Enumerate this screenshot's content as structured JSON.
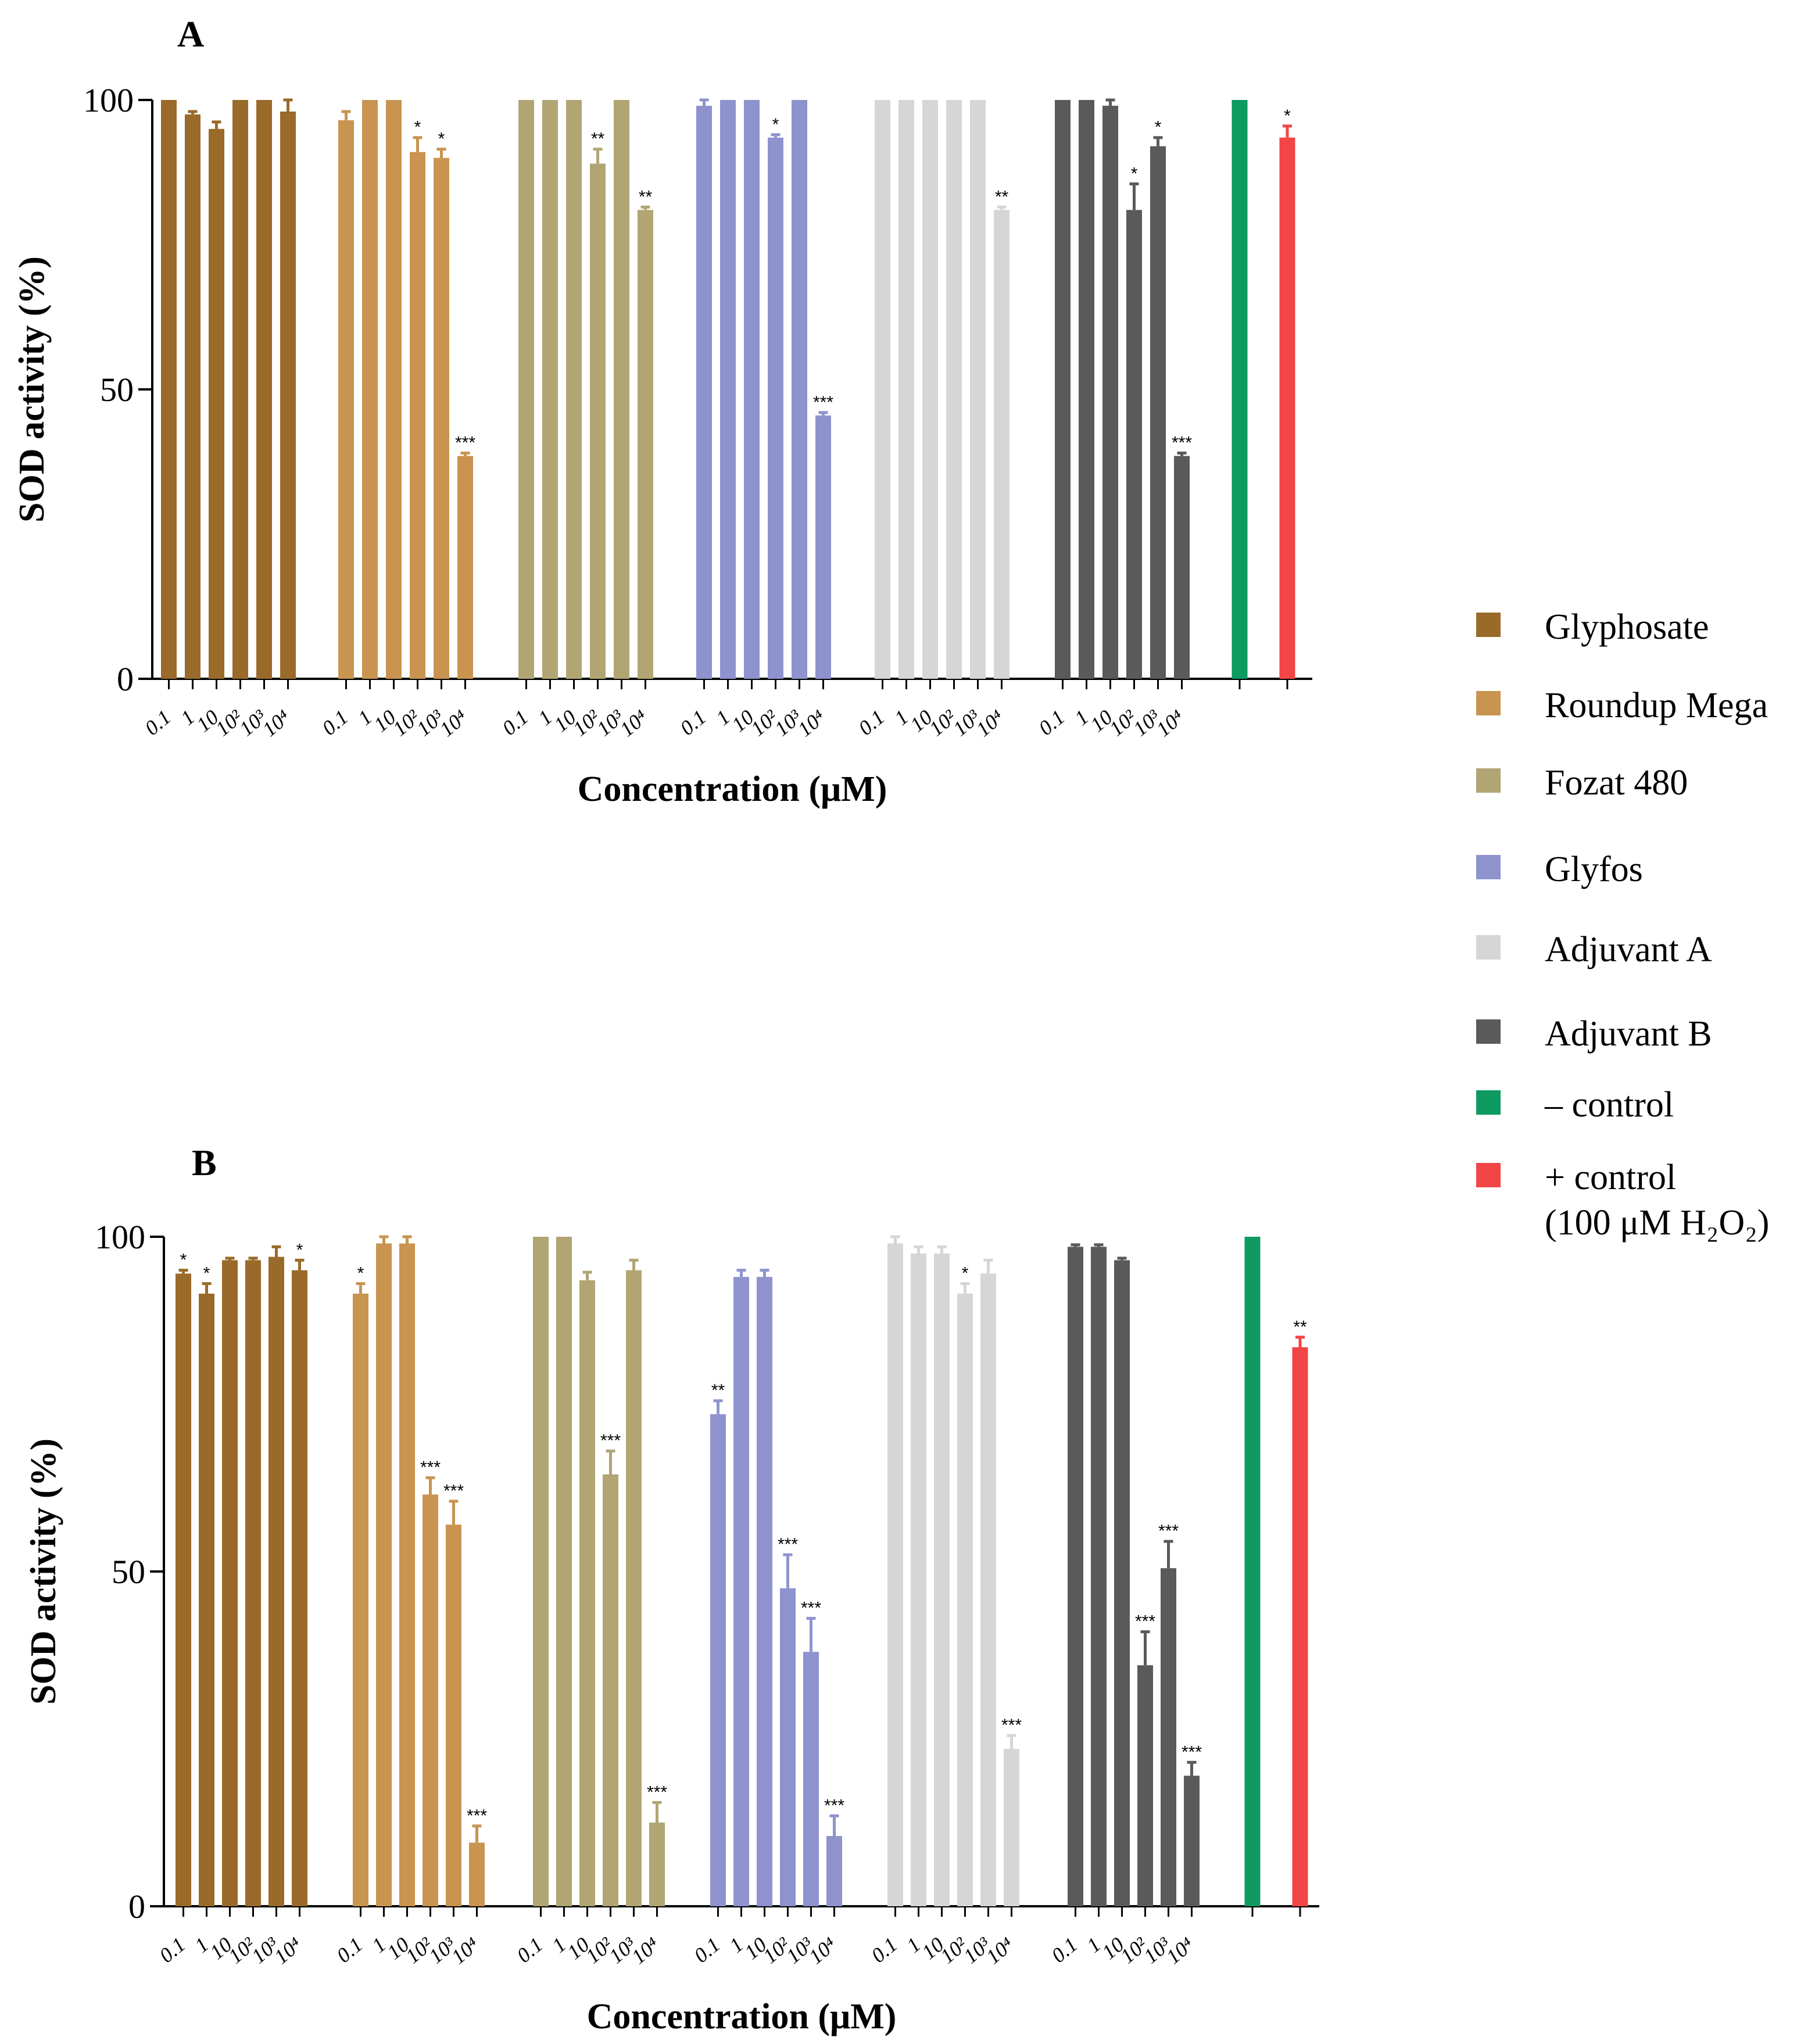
{
  "chart_data": [
    {
      "panel_label": "A",
      "type": "bar",
      "xlabel": "Concentration (μM)",
      "ylabel": "SOD activity (%)",
      "ylim": [
        0,
        100
      ],
      "yticks": [
        "0",
        "50",
        "100"
      ],
      "concentration_ticks": [
        "0.1",
        "1",
        "10",
        "10²",
        "10³",
        "10⁴"
      ],
      "groups": [
        {
          "name": "Glyphosate",
          "values": [
            100,
            97.5,
            95,
            100,
            100,
            98
          ],
          "errors": [
            0,
            0.5,
            1.2,
            0,
            0,
            2
          ],
          "sig": [
            "",
            "",
            "",
            "",
            "",
            ""
          ]
        },
        {
          "name": "Roundup Mega",
          "values": [
            96.5,
            100,
            100,
            91,
            90,
            38.5
          ],
          "errors": [
            1.5,
            0,
            0,
            2.5,
            1.5,
            0.5
          ],
          "sig": [
            "",
            "",
            "",
            "*",
            "*",
            "***"
          ]
        },
        {
          "name": "Fozat 480",
          "values": [
            100,
            100,
            100,
            89,
            100,
            81
          ],
          "errors": [
            0,
            0,
            0,
            2.5,
            0,
            0.5
          ],
          "sig": [
            "",
            "",
            "",
            "**",
            "",
            "**"
          ]
        },
        {
          "name": "Glyfos",
          "values": [
            99,
            100,
            100,
            93.5,
            100,
            45.5
          ],
          "errors": [
            1,
            0,
            0,
            0.5,
            0,
            0.5
          ],
          "sig": [
            "",
            "",
            "",
            "*",
            "",
            "***"
          ]
        },
        {
          "name": "Adjuvant A",
          "values": [
            100,
            100,
            100,
            100,
            100,
            81
          ],
          "errors": [
            0,
            0,
            0,
            0,
            0,
            0.5
          ],
          "sig": [
            "",
            "",
            "",
            "",
            "",
            "**"
          ]
        },
        {
          "name": "Adjuvant B",
          "values": [
            100,
            100,
            99,
            81,
            92,
            38.5
          ],
          "errors": [
            0,
            0,
            1,
            4.5,
            1.5,
            0.5
          ],
          "sig": [
            "",
            "",
            "",
            "*",
            "*",
            "***"
          ]
        }
      ],
      "controls": [
        {
          "name": "– control",
          "value": 100,
          "error": 0,
          "sig": ""
        },
        {
          "name": "+ control",
          "value": 93.5,
          "error": 2,
          "sig": "*"
        }
      ]
    },
    {
      "panel_label": "B",
      "type": "bar",
      "xlabel": "Concentration (μM)",
      "ylabel": "SOD activity (%)",
      "ylim": [
        0,
        100
      ],
      "yticks": [
        "0",
        "50",
        "100"
      ],
      "concentration_ticks": [
        "0.1",
        "1",
        "10",
        "10²",
        "10³",
        "10⁴"
      ],
      "groups": [
        {
          "name": "Glyphosate",
          "values": [
            94.5,
            91.5,
            96.5,
            96.5,
            97,
            95
          ],
          "errors": [
            0.5,
            1.5,
            0.3,
            0.3,
            1.5,
            1.5
          ],
          "sig": [
            "*",
            "*",
            "",
            "",
            "",
            "*"
          ]
        },
        {
          "name": "Roundup Mega",
          "values": [
            91.5,
            99,
            99,
            61.5,
            57,
            9.5
          ],
          "errors": [
            1.5,
            1,
            1,
            2.5,
            3.5,
            2.5
          ],
          "sig": [
            "*",
            "",
            "",
            "***",
            "***",
            "***"
          ]
        },
        {
          "name": "Fozat 480",
          "values": [
            100,
            100,
            93.5,
            64.5,
            95,
            12.5
          ],
          "errors": [
            0,
            0,
            1.2,
            3.5,
            1.5,
            3
          ],
          "sig": [
            "",
            "",
            "",
            "***",
            "",
            "***"
          ]
        },
        {
          "name": "Glyfos",
          "values": [
            73.5,
            94,
            94,
            47.5,
            38,
            10.5
          ],
          "errors": [
            2,
            1,
            1,
            5,
            5,
            3
          ],
          "sig": [
            "**",
            "",
            "",
            "***",
            "***",
            "***"
          ]
        },
        {
          "name": "Adjuvant A",
          "values": [
            99,
            97.5,
            97.5,
            91.5,
            94.5,
            23.5
          ],
          "errors": [
            1,
            1,
            1,
            1.5,
            2,
            2
          ],
          "sig": [
            "",
            "",
            "",
            "*",
            "",
            "***"
          ]
        },
        {
          "name": "Adjuvant B",
          "values": [
            98.5,
            98.5,
            96.5,
            36,
            50.5,
            19.5
          ],
          "errors": [
            0.3,
            0.3,
            0.3,
            5,
            4,
            2
          ],
          "sig": [
            "",
            "",
            "",
            "***",
            "***",
            "***"
          ]
        }
      ],
      "controls": [
        {
          "name": "– control",
          "value": 100,
          "error": 0,
          "sig": ""
        },
        {
          "name": "+ control",
          "value": 83.5,
          "error": 1.5,
          "sig": "**"
        }
      ]
    }
  ],
  "legend": [
    {
      "label": "Glyphosate",
      "color": "#9A6A2A"
    },
    {
      "label": "Roundup Mega",
      "color": "#C89450"
    },
    {
      "label": "Fozat 480",
      "color": "#B1A574"
    },
    {
      "label": "Glyfos",
      "color": "#8E93CE"
    },
    {
      "label": "Adjuvant A",
      "color": "#D6D6D6"
    },
    {
      "label": "Adjuvant B",
      "color": "#5A5A5A"
    },
    {
      "label": "– control",
      "color": "#0E9A60"
    },
    {
      "label": "+ control\n(100 μM H₂O₂)",
      "color": "#F24545"
    }
  ]
}
